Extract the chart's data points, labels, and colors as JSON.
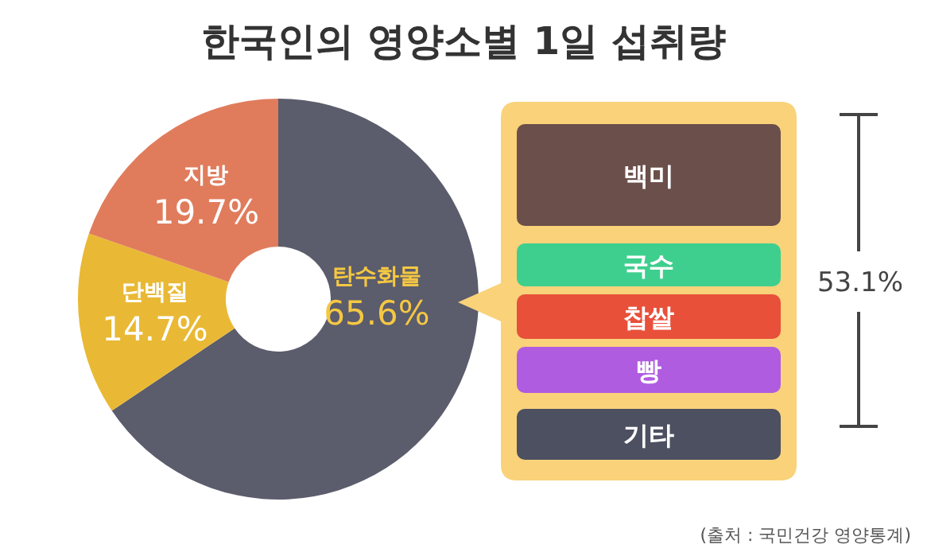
{
  "chart_data": {
    "type": "donut",
    "title": "한국인의 영양소별 1일 섭취량",
    "categories": [
      "탄수화물",
      "단백질",
      "지방"
    ],
    "values": [
      65.6,
      14.7,
      19.7
    ],
    "value_labels": [
      "65.6%",
      "14.7%",
      "19.7%"
    ],
    "colors": [
      "#5b5c6c",
      "#e9b935",
      "#e07c5c"
    ],
    "annotations": [
      "백미",
      "국수",
      "찹쌀",
      "빵",
      "기타",
      "53.1%",
      "(출처 : 국민건강 영양통계)"
    ]
  }
}
